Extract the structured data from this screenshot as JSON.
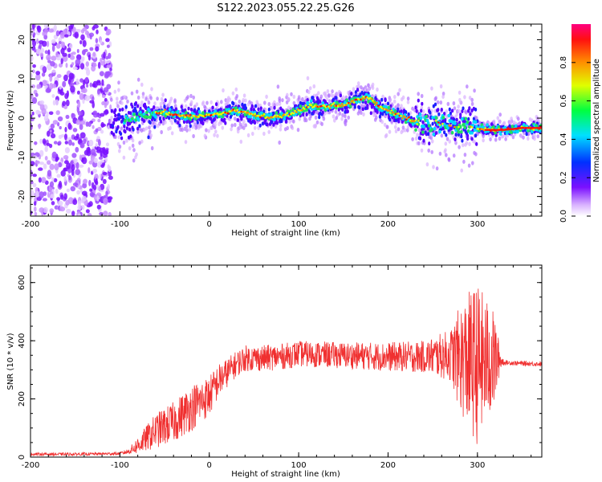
{
  "title": "S122.2023.055.22.25.G26",
  "chart_data": [
    {
      "type": "heatmap",
      "xlabel": "Height of straight line (km)",
      "ylabel": "Frequency (Hz)",
      "xlim": [
        -200,
        372
      ],
      "ylim": [
        -25,
        24
      ],
      "x_ticks": [
        -200,
        -100,
        0,
        100,
        200,
        300
      ],
      "y_ticks": [
        -20,
        -10,
        0,
        10,
        20
      ],
      "grid": false,
      "colorbar": {
        "label": "Normalized spectral amplitude",
        "ticks": [
          0.0,
          0.2,
          0.4,
          0.6,
          0.8
        ],
        "range": [
          0,
          1
        ]
      },
      "noise_region_x": [
        -200,
        -110
      ],
      "ridge": {
        "x": [
          -110,
          -90,
          -70,
          -50,
          -30,
          -10,
          10,
          30,
          50,
          70,
          90,
          110,
          130,
          150,
          170,
          180,
          190,
          210,
          230,
          250,
          270,
          290,
          310,
          330,
          350,
          372
        ],
        "frequency": [
          -1,
          0,
          1,
          1.5,
          0.5,
          0.5,
          1,
          2,
          1,
          0,
          1,
          3,
          3,
          3.5,
          5,
          5,
          3,
          1,
          -1,
          -1,
          -2,
          -2,
          -3,
          -3,
          -2.5,
          -2.5
        ]
      }
    },
    {
      "type": "line",
      "xlabel": "Height of straight line (km)",
      "ylabel": "SNR (10 * v/v)",
      "xlim": [
        -200,
        372
      ],
      "ylim": [
        0,
        660
      ],
      "x_ticks": [
        -200,
        -100,
        0,
        100,
        200,
        300
      ],
      "y_ticks": [
        0,
        200,
        400,
        600
      ],
      "grid": false,
      "series": [
        {
          "color": "#f03030",
          "x": [
            -200,
            -150,
            -100,
            -90,
            -80,
            -60,
            -40,
            -20,
            0,
            10,
            20,
            30,
            40,
            60,
            80,
            100,
            150,
            200,
            240,
            270,
            280,
            290,
            300,
            310,
            320,
            325,
            330,
            350,
            372
          ],
          "mean": [
            10,
            10,
            12,
            20,
            40,
            90,
            120,
            170,
            210,
            260,
            290,
            320,
            340,
            340,
            345,
            355,
            350,
            345,
            345,
            350,
            340,
            330,
            320,
            330,
            330,
            335,
            325,
            322,
            320
          ],
          "amplitude": [
            5,
            5,
            5,
            10,
            30,
            60,
            70,
            80,
            70,
            60,
            50,
            45,
            45,
            45,
            45,
            45,
            45,
            50,
            55,
            90,
            180,
            240,
            280,
            220,
            160,
            40,
            8,
            8,
            8
          ]
        }
      ]
    }
  ]
}
